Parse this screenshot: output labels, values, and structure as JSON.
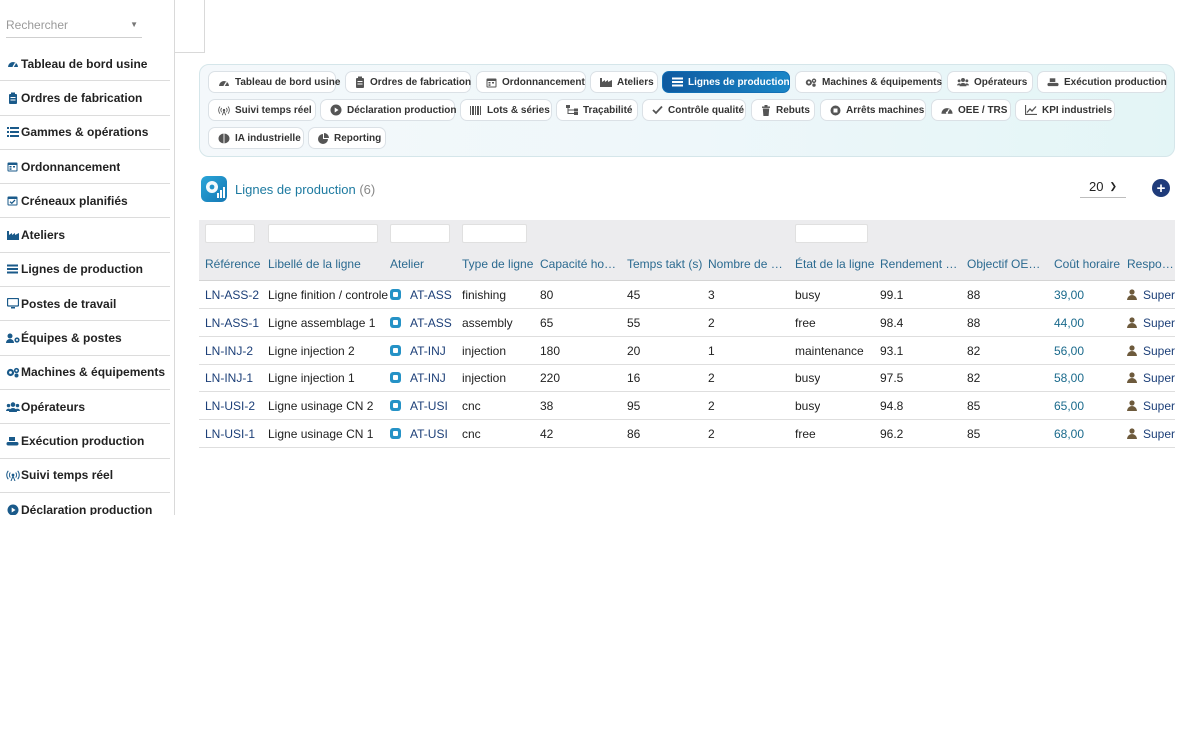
{
  "search": {
    "placeholder": "Rechercher"
  },
  "sidebar": {
    "items": [
      {
        "label": "Tableau de bord usine",
        "icon": "dashboard-icon"
      },
      {
        "label": "Ordres de fabrication",
        "icon": "clipboard-icon"
      },
      {
        "label": "Gammes & opérations",
        "icon": "list-icon"
      },
      {
        "label": "Ordonnancement",
        "icon": "calendar-icon"
      },
      {
        "label": "Créneaux planifiés",
        "icon": "calendar-check-icon"
      },
      {
        "label": "Ateliers",
        "icon": "factory-icon"
      },
      {
        "label": "Lignes de production",
        "icon": "bars-icon"
      },
      {
        "label": "Postes de travail",
        "icon": "monitor-icon"
      },
      {
        "label": "Équipes & postes",
        "icon": "users-gear-icon"
      },
      {
        "label": "Machines & équipements",
        "icon": "gears-icon"
      },
      {
        "label": "Opérateurs",
        "icon": "users-icon"
      },
      {
        "label": "Exécution production",
        "icon": "conveyor-icon"
      },
      {
        "label": "Suivi temps réel",
        "icon": "broadcast-icon"
      },
      {
        "label": "Déclaration production",
        "icon": "play-circle-icon"
      }
    ]
  },
  "tabs": [
    {
      "label": "Tableau de bord usine",
      "icon": "dashboard-icon"
    },
    {
      "label": "Ordres de fabrication",
      "icon": "clipboard-icon"
    },
    {
      "label": "Ordonnancement",
      "icon": "calendar-icon"
    },
    {
      "label": "Ateliers",
      "icon": "factory-icon"
    },
    {
      "label": "Lignes de production",
      "icon": "bars-icon",
      "active": true
    },
    {
      "label": "Machines & équipements",
      "icon": "gears-icon"
    },
    {
      "label": "Opérateurs",
      "icon": "users-icon"
    },
    {
      "label": "Exécution production",
      "icon": "conveyor-icon"
    },
    {
      "label": "Suivi temps réel",
      "icon": "broadcast-icon"
    },
    {
      "label": "Déclaration production",
      "icon": "play-circle-icon"
    },
    {
      "label": "Lots & séries",
      "icon": "barcode-icon"
    },
    {
      "label": "Traçabilité",
      "icon": "sitemap-icon"
    },
    {
      "label": "Contrôle qualité",
      "icon": "check-icon"
    },
    {
      "label": "Rebuts",
      "icon": "trash-icon"
    },
    {
      "label": "Arrêts machines",
      "icon": "stop-circle-icon"
    },
    {
      "label": "OEE / TRS",
      "icon": "gauge-icon"
    },
    {
      "label": "KPI industriels",
      "icon": "line-chart-icon"
    },
    {
      "label": "IA industrielle",
      "icon": "brain-icon"
    },
    {
      "label": "Reporting",
      "icon": "pie-chart-icon"
    }
  ],
  "page": {
    "title": "Lignes de production",
    "count": "(6)",
    "per_page": "20",
    "add_label": "+"
  },
  "table": {
    "columns": [
      "Référence",
      "Libellé de la ligne",
      "Atelier",
      "Type de ligne",
      "Capacité hor…",
      "Temps takt (s)",
      "Nombre de p…",
      "État de la ligne",
      "Rendement (…",
      "Objectif OEE…",
      "Coût horaire",
      "Responsa"
    ],
    "rows": [
      [
        "LN-ASS-2",
        "Ligne finition / controle",
        "AT-ASS",
        "finishing",
        "80",
        "45",
        "3",
        "busy",
        "99.1",
        "88",
        "39,00",
        "SuperA"
      ],
      [
        "LN-ASS-1",
        "Ligne assemblage 1",
        "AT-ASS",
        "assembly",
        "65",
        "55",
        "2",
        "free",
        "98.4",
        "88",
        "44,00",
        "SuperA"
      ],
      [
        "LN-INJ-2",
        "Ligne injection 2",
        "AT-INJ",
        "injection",
        "180",
        "20",
        "1",
        "maintenance",
        "93.1",
        "82",
        "56,00",
        "SuperA"
      ],
      [
        "LN-INJ-1",
        "Ligne injection 1",
        "AT-INJ",
        "injection",
        "220",
        "16",
        "2",
        "busy",
        "97.5",
        "82",
        "58,00",
        "SuperA"
      ],
      [
        "LN-USI-2",
        "Ligne usinage CN 2",
        "AT-USI",
        "cnc",
        "38",
        "95",
        "2",
        "busy",
        "94.8",
        "85",
        "65,00",
        "SuperA"
      ],
      [
        "LN-USI-1",
        "Ligne usinage CN 1",
        "AT-USI",
        "cnc",
        "42",
        "86",
        "2",
        "free",
        "96.2",
        "85",
        "68,00",
        "SuperA"
      ]
    ]
  },
  "colors": {
    "accent": "#1270b5",
    "title": "#1d7aa0",
    "add_button": "#1f3b7a"
  }
}
